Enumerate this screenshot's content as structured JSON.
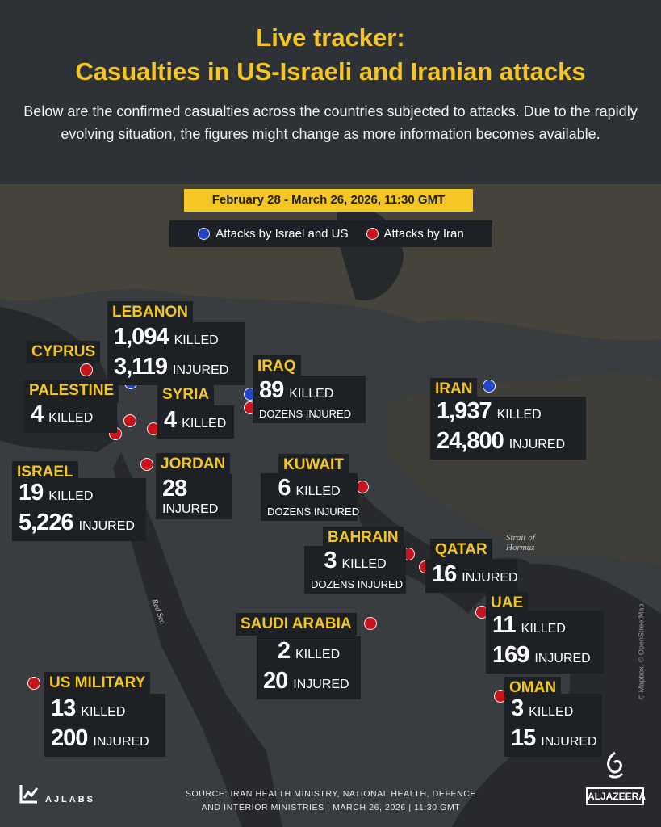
{
  "header": {
    "title_line1": "Live tracker:",
    "title_line2": "Casualties in US-Israeli and Iranian attacks",
    "description": "Below are the confirmed casualties across the countries subjected to attacks. Due to the rapidly evolving situation, the figures might change as more information becomes available.",
    "date_range": "February 28 - March 26, 2026, 11:30 GMT"
  },
  "legend": {
    "items": [
      {
        "label": "Attacks by Israel and US",
        "color": "#2146c7"
      },
      {
        "label": "Attacks by Iran",
        "color": "#c8141c"
      }
    ]
  },
  "countries": {
    "lebanon": {
      "name": "LEBANON",
      "r1n": "1,094",
      "r1u": "KILLED",
      "r2n": "3,119",
      "r2u": "INJURED"
    },
    "cyprus": {
      "name": "CYPRUS"
    },
    "palestine": {
      "name": "PALESTINE",
      "r1n": "4",
      "r1u": "KILLED"
    },
    "syria": {
      "name": "SYRIA",
      "r1n": "4",
      "r1u": "KILLED"
    },
    "iraq": {
      "name": "IRAQ",
      "r1n": "89",
      "r1u": "KILLED",
      "r2u": "DOZENS INJURED"
    },
    "iran": {
      "name": "IRAN",
      "r1n": "1,937",
      "r1u": "KILLED",
      "r2n": "24,800",
      "r2u": "INJURED"
    },
    "israel": {
      "name": "ISRAEL",
      "r1n": "19",
      "r1u": "KILLED",
      "r2n": "5,226",
      "r2u": "INJURED"
    },
    "jordan": {
      "name": "JORDAN",
      "r1n": "28",
      "r2u": "INJURED"
    },
    "kuwait": {
      "name": "KUWAIT",
      "r1n": "6",
      "r1u": "KILLED",
      "r2u": "DOZENS INJURED"
    },
    "bahrain": {
      "name": "BAHRAIN",
      "r1n": "3",
      "r1u": "KILLED",
      "r2u": "DOZENS INJURED"
    },
    "qatar": {
      "name": "QATAR",
      "r1n": "16",
      "r1u": "INJURED"
    },
    "saudi": {
      "name": "SAUDI ARABIA",
      "r1n": "2",
      "r1u": "KILLED",
      "r2n": "20",
      "r2u": "INJURED"
    },
    "uae": {
      "name": "UAE",
      "r1n": "11",
      "r1u": "KILLED",
      "r2n": "169",
      "r2u": "INJURED"
    },
    "oman": {
      "name": "OMAN",
      "r1n": "3",
      "r1u": "KILLED",
      "r2n": "15",
      "r2u": "INJURED"
    },
    "us_military": {
      "name": "US MILITARY",
      "r1n": "13",
      "r1u": "KILLED",
      "r2n": "200",
      "r2u": "INJURED"
    }
  },
  "map_labels": {
    "strait_line1": "Strait of",
    "strait_line2": "Hormuz",
    "red_sea": "Red Sea",
    "credit": "© Mapbox, © OpenStreetMap"
  },
  "footer": {
    "source_line1": "SOURCE:  IRAN HEALTH MINISTRY, NATIONAL HEALTH, DEFENCE",
    "source_line2": "AND INTERIOR MINISTRIES   |   MARCH 26, 2026   |   11:30 GMT",
    "ajlabs": "AJLABS",
    "aljazeera": "ALJAZEERA"
  }
}
